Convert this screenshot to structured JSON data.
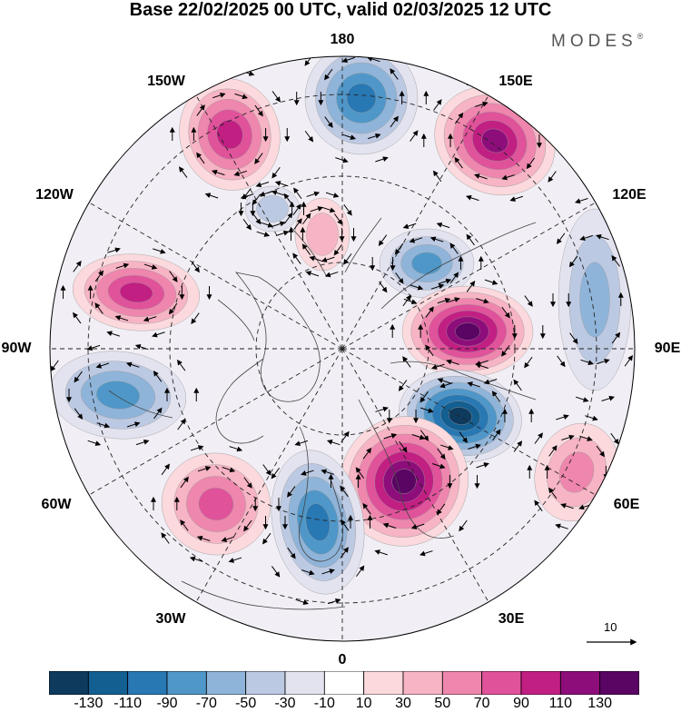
{
  "title": "Base 22/02/2025 00 UTC, valid 02/03/2025 12 UTC",
  "brand": "MODES",
  "brand_mark": "®",
  "map": {
    "projection": "north polar stereographic",
    "graticule": "dashed",
    "longitude_labels": [
      "180",
      "150E",
      "120E",
      "90E",
      "60E",
      "30E",
      "0",
      "30W",
      "60W",
      "90W",
      "120W",
      "150W"
    ],
    "vector_scale_label": "10",
    "anomaly_centers": [
      {
        "sign": "negative",
        "level": -90
      },
      {
        "sign": "positive",
        "level": 110
      },
      {
        "sign": "positive",
        "level": 90
      },
      {
        "sign": "negative",
        "level": -70
      },
      {
        "sign": "positive",
        "level": 130
      },
      {
        "sign": "negative",
        "level": -130
      },
      {
        "sign": "positive",
        "level": 130
      },
      {
        "sign": "positive",
        "level": 70
      },
      {
        "sign": "negative",
        "level": -90
      },
      {
        "sign": "positive",
        "level": 90
      },
      {
        "sign": "negative",
        "level": -70
      },
      {
        "sign": "positive",
        "level": 50
      },
      {
        "sign": "positive",
        "level": 30
      },
      {
        "sign": "negative",
        "level": -50
      },
      {
        "sign": "negative",
        "level": -30
      }
    ]
  },
  "colorbar": {
    "ticks": [
      "-130",
      "-110",
      "-90",
      "-70",
      "-50",
      "-30",
      "-10",
      "10",
      "30",
      "50",
      "70",
      "90",
      "110",
      "130"
    ],
    "colors": [
      "#0e3a5e",
      "#145f91",
      "#2878b4",
      "#4f97c8",
      "#8fb4d9",
      "#bcc9e2",
      "#e3e3f0",
      "#ffffff",
      "#fbd9dd",
      "#f6b4c4",
      "#ef86ad",
      "#e0529a",
      "#c21f83",
      "#8d0d7a",
      "#5a0463"
    ]
  },
  "colors": {
    "coast": "#444444",
    "vectors": "#000000",
    "graticule": "#222222"
  }
}
